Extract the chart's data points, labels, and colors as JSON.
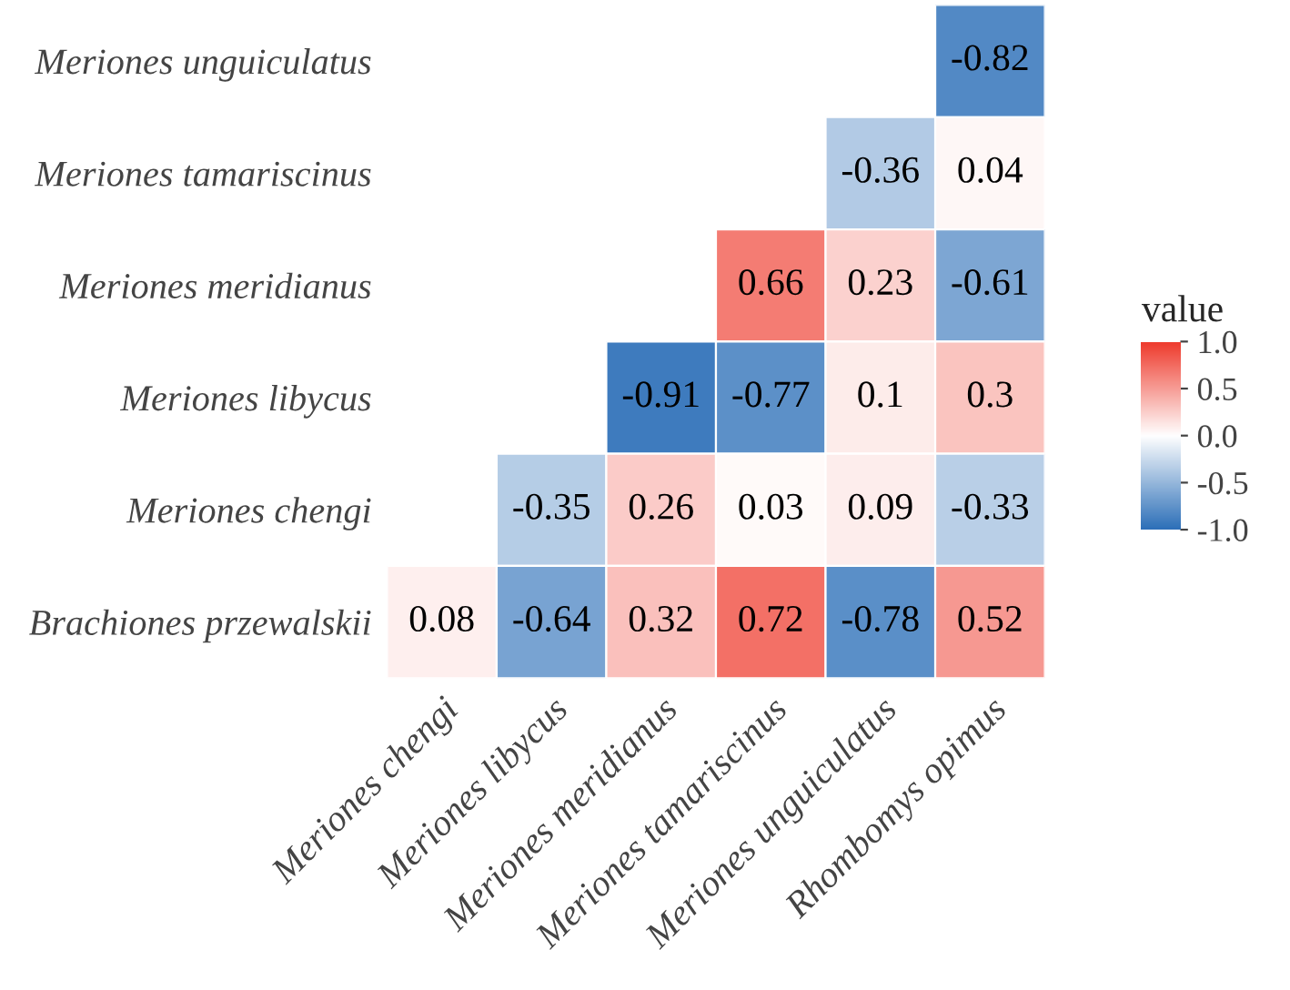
{
  "chart_data": {
    "type": "heatmap",
    "categories": [
      "Meriones chengi",
      "Meriones libycus",
      "Meriones meridianus",
      "Meriones tamariscinus",
      "Meriones unguiculatus",
      "Rhombomys opimus"
    ],
    "y_categories": [
      "Meriones unguiculatus",
      "Meriones tamariscinus",
      "Meriones meridianus",
      "Meriones libycus",
      "Meriones chengi",
      "Brachiones przewalskii"
    ],
    "cells": [
      [
        null,
        null,
        null,
        null,
        null,
        -0.82
      ],
      [
        null,
        null,
        null,
        null,
        -0.36,
        0.04
      ],
      [
        null,
        null,
        null,
        0.66,
        0.23,
        -0.61
      ],
      [
        null,
        null,
        -0.91,
        -0.77,
        0.1,
        0.3
      ],
      [
        null,
        -0.35,
        0.26,
        0.03,
        0.09,
        -0.33
      ],
      [
        0.08,
        -0.64,
        0.32,
        0.72,
        -0.78,
        0.52
      ]
    ],
    "data_labels": true,
    "clabel": "value",
    "clim": [
      -1,
      1
    ],
    "cticks": [
      {
        "value": -1,
        "label": "-1.0"
      },
      {
        "value": -0.5,
        "label": "-0.5"
      },
      {
        "value": 0,
        "label": "0.0"
      },
      {
        "value": 0.5,
        "label": "0.5"
      },
      {
        "value": 1,
        "label": "1.0"
      }
    ],
    "colors": [
      "#2c6fb8",
      "#ffffff",
      "#ee3a2c"
    ]
  }
}
